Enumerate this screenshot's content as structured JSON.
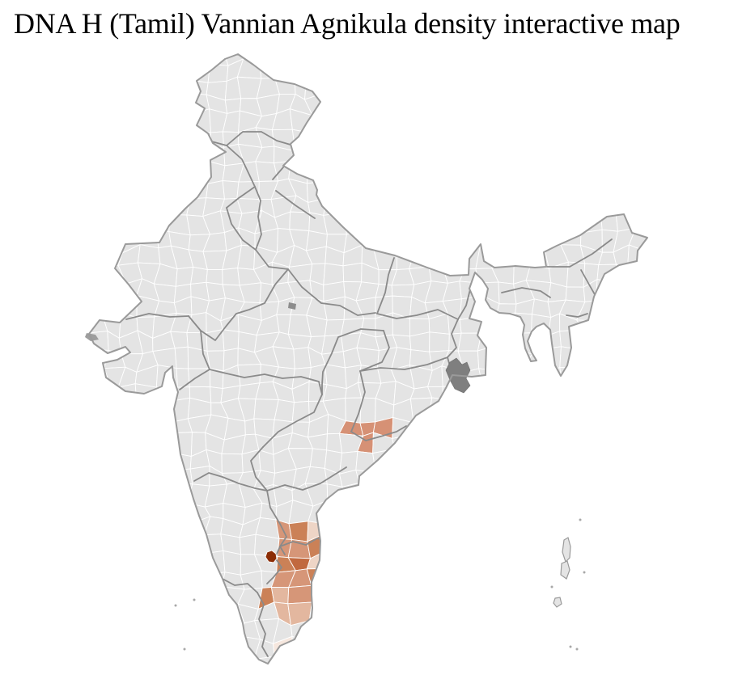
{
  "page": {
    "title": "DNA H (Tamil) Vannian Agnikula density interactive map"
  },
  "map": {
    "label": "India district-level density map",
    "background": "#ffffff",
    "land_fill": "#e4e4e4",
    "district_border_color": "#ffffff",
    "state_border_color": "#8a8a8a",
    "coast_outline_color": "#9a9a9a",
    "delta_gray_color": "#7f7f7f",
    "kutch_gray_color": "#9e9e9e",
    "inland_gray_patch_color": "#8d8d8d",
    "density_palette": [
      "#f6e7de",
      "#eed5c6",
      "#e3b79f",
      "#d69678",
      "#cb8157",
      "#c1693f"
    ],
    "peak_density_color": "#8c2d06",
    "odisha_patch_colors": {
      "medium": "#d69175",
      "light": "#f3ded1"
    },
    "clusters": [
      {
        "name": "tamil-nadu-cluster"
      },
      {
        "name": "south-odisha-cluster"
      }
    ]
  }
}
